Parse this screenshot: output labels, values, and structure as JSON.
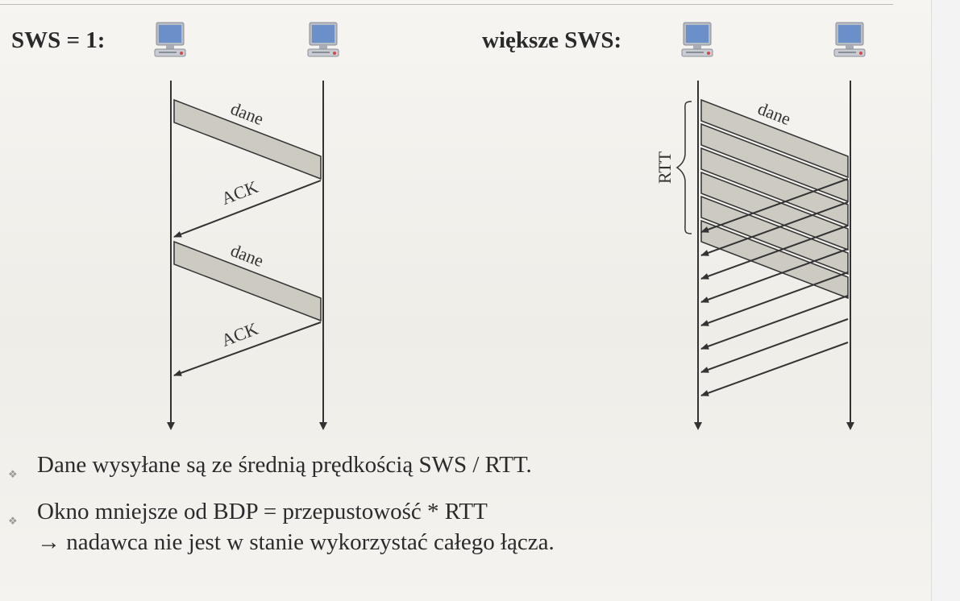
{
  "left_panel": {
    "title": "SWS = 1:"
  },
  "right_panel": {
    "title": "większe SWS:"
  },
  "labels": {
    "data": "dane",
    "ack": "ACK",
    "rtt": "RTT"
  },
  "bullets": [
    {
      "lines": [
        "Dane wysyłane są ze średnią prędkością SWS / RTT."
      ]
    },
    {
      "lines": [
        "Okno mniejsze od BDP = przepustowość * RTT",
        "→ nadawca nie jest w stanie wykorzystać całego łącza."
      ]
    }
  ],
  "icons": {
    "bullet": "diamond-bullet-icon",
    "host": "computer-icon"
  },
  "colors": {
    "band": "#cdcac1",
    "line": "#333333",
    "text": "#2b2b2b"
  }
}
